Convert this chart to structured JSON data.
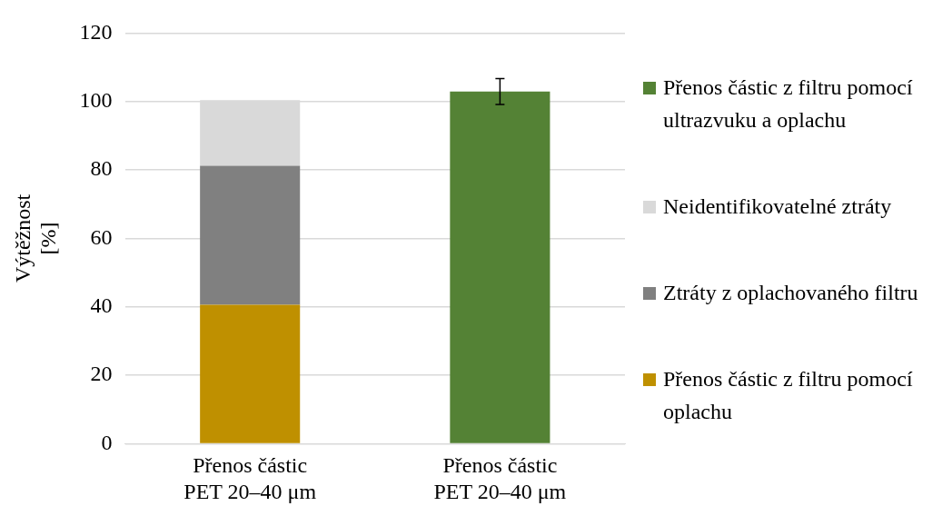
{
  "chart_data": {
    "type": "bar",
    "ylabel": "Výtěžnost [%]",
    "categories": [
      "Přenos částic\nPET 20–40 μm",
      "Přenos částic\nPET 20–40 μm"
    ],
    "stacked": true,
    "ylim": [
      0,
      120
    ],
    "yticks": [
      0,
      20,
      40,
      60,
      80,
      100,
      120
    ],
    "grid": "y",
    "legend": "right",
    "series": [
      {
        "name": "Přenos částic z filtru pomocí oplachu",
        "color": "#bf9000",
        "values": [
          40.6,
          null
        ]
      },
      {
        "name": "Ztráty z oplachovaného filtru",
        "color": "#808080",
        "values": [
          40.6,
          null
        ]
      },
      {
        "name": "Neidentifikovatelné ztráty",
        "color": "#d9d9d9",
        "values": [
          19.2,
          null
        ]
      },
      {
        "name": "Přenos částic z filtru pomocí ultrazvuku a oplachu",
        "color": "#548235",
        "values": [
          null,
          102.9
        ],
        "errors": [
          null,
          3.8
        ]
      }
    ]
  }
}
